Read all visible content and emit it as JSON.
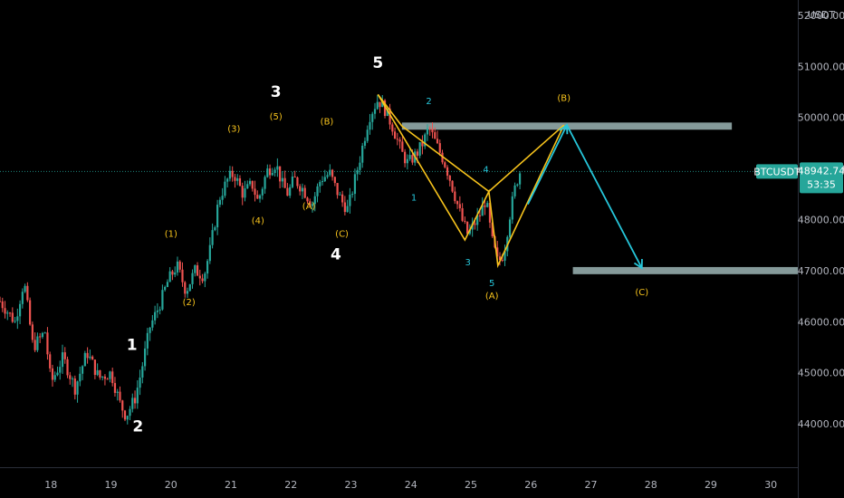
{
  "chart_data": {
    "type": "candlestick",
    "symbol": "BTCUSDT",
    "currency": "USDT",
    "last_price": "48942.74",
    "countdown": "53:35",
    "y_axis": {
      "ylim": [
        43150,
        52300
      ],
      "ticks": [
        "52000.00",
        "51000.00",
        "50000.00",
        "49000.00",
        "48000.00",
        "47000.00",
        "46000.00",
        "45000.00",
        "44000.00"
      ],
      "tick_values": [
        52000,
        51000,
        50000,
        49000,
        48000,
        47000,
        46000,
        45000,
        44000
      ]
    },
    "x_axis": {
      "xlim": [
        17.15,
        30.45
      ],
      "ticks": [
        "18",
        "19",
        "20",
        "21",
        "22",
        "23",
        "24",
        "25",
        "26",
        "27",
        "28",
        "29",
        "30"
      ],
      "tick_values": [
        18,
        19,
        20,
        21,
        22,
        23,
        24,
        25,
        26,
        27,
        28,
        29,
        30
      ]
    },
    "price_path": [
      [
        17.15,
        46400
      ],
      [
        17.4,
        46000
      ],
      [
        17.55,
        46800
      ],
      [
        17.7,
        45500
      ],
      [
        17.9,
        45800
      ],
      [
        18.0,
        44800
      ],
      [
        18.2,
        45300
      ],
      [
        18.4,
        44700
      ],
      [
        18.6,
        45400
      ],
      [
        18.8,
        44900
      ],
      [
        19.0,
        45000
      ],
      [
        19.15,
        44400
      ],
      [
        19.25,
        44150
      ],
      [
        19.4,
        44500
      ],
      [
        19.5,
        45000
      ],
      [
        19.65,
        45900
      ],
      [
        19.8,
        46300
      ],
      [
        19.95,
        46800
      ],
      [
        20.1,
        47100
      ],
      [
        20.25,
        46600
      ],
      [
        20.4,
        47000
      ],
      [
        20.55,
        46900
      ],
      [
        20.65,
        47400
      ],
      [
        20.8,
        48400
      ],
      [
        20.95,
        48800
      ],
      [
        21.05,
        48900
      ],
      [
        21.2,
        48500
      ],
      [
        21.35,
        48700
      ],
      [
        21.45,
        48350
      ],
      [
        21.6,
        48950
      ],
      [
        21.75,
        49100
      ],
      [
        21.85,
        48700
      ],
      [
        21.95,
        48500
      ],
      [
        22.05,
        48800
      ],
      [
        22.2,
        48600
      ],
      [
        22.35,
        48300
      ],
      [
        22.5,
        48800
      ],
      [
        22.65,
        48900
      ],
      [
        22.75,
        48600
      ],
      [
        22.85,
        48350
      ],
      [
        22.95,
        48200
      ],
      [
        23.05,
        48700
      ],
      [
        23.15,
        49200
      ],
      [
        23.3,
        50000
      ],
      [
        23.45,
        50350
      ],
      [
        23.55,
        50200
      ],
      [
        23.7,
        49800
      ],
      [
        23.85,
        49300
      ],
      [
        23.95,
        49100
      ],
      [
        24.1,
        49300
      ],
      [
        24.2,
        49500
      ],
      [
        24.3,
        49800
      ],
      [
        24.45,
        49400
      ],
      [
        24.55,
        49150
      ],
      [
        24.65,
        48800
      ],
      [
        24.75,
        48400
      ],
      [
        24.85,
        48000
      ],
      [
        24.95,
        47700
      ],
      [
        25.05,
        47900
      ],
      [
        25.15,
        48100
      ],
      [
        25.25,
        48400
      ],
      [
        25.35,
        47600
      ],
      [
        25.45,
        47150
      ],
      [
        25.55,
        47350
      ],
      [
        25.65,
        48100
      ],
      [
        25.75,
        48700
      ],
      [
        25.82,
        48942
      ]
    ],
    "zones": [
      {
        "x": [
          23.85,
          29.35
        ],
        "y": [
          49760,
          49900
        ]
      },
      {
        "x": [
          26.7,
          30.45
        ],
        "y": [
          46930,
          47070
        ]
      }
    ],
    "yellow_pattern": [
      [
        23.45,
        50450
      ],
      [
        24.9,
        47600
      ],
      [
        25.3,
        48550
      ],
      [
        25.45,
        47100
      ],
      [
        26.55,
        49850
      ],
      [
        23.85,
        49830
      ],
      [
        25.3,
        48550
      ],
      [
        26.55,
        49850
      ]
    ],
    "cyan_projection": [
      [
        25.95,
        48300
      ],
      [
        26.6,
        49850
      ],
      [
        27.85,
        47050
      ]
    ],
    "wave_labels": [
      {
        "text": "5",
        "x": 23.45,
        "y": 50970,
        "style": "w"
      },
      {
        "text": "3",
        "x": 21.75,
        "y": 50400,
        "style": "w"
      },
      {
        "text": "4",
        "x": 22.75,
        "y": 47220,
        "style": "w"
      },
      {
        "text": "1",
        "x": 19.35,
        "y": 45450,
        "style": "w"
      },
      {
        "text": "2",
        "x": 19.45,
        "y": 43850,
        "style": "w"
      },
      {
        "text": "(B)",
        "x": 26.55,
        "y": 50320,
        "style": "y"
      },
      {
        "text": "(3)",
        "x": 21.05,
        "y": 49720,
        "style": "y"
      },
      {
        "text": "(5)",
        "x": 21.75,
        "y": 49960,
        "style": "y"
      },
      {
        "text": "(B)",
        "x": 22.6,
        "y": 49860,
        "style": "y"
      },
      {
        "text": "(A)",
        "x": 22.3,
        "y": 48200,
        "style": "y"
      },
      {
        "text": "(4)",
        "x": 21.45,
        "y": 47920,
        "style": "y"
      },
      {
        "text": "(C)",
        "x": 22.85,
        "y": 47660,
        "style": "y"
      },
      {
        "text": "(1)",
        "x": 20.0,
        "y": 47660,
        "style": "y"
      },
      {
        "text": "(2)",
        "x": 20.3,
        "y": 46320,
        "style": "y"
      },
      {
        "text": "(A)",
        "x": 25.35,
        "y": 46450,
        "style": "y"
      },
      {
        "text": "(C)",
        "x": 27.85,
        "y": 46520,
        "style": "y"
      },
      {
        "text": "2",
        "x": 24.3,
        "y": 50260,
        "style": "c"
      },
      {
        "text": "4",
        "x": 25.25,
        "y": 48920,
        "style": "c"
      },
      {
        "text": "1",
        "x": 24.05,
        "y": 48370,
        "style": "c"
      },
      {
        "text": "3",
        "x": 24.95,
        "y": 47100,
        "style": "c"
      },
      {
        "text": "5",
        "x": 25.35,
        "y": 46700,
        "style": "c"
      }
    ]
  },
  "colors": {
    "background": "#000000",
    "up_candle": "#26a69a",
    "down_candle": "#ef5350",
    "zone": "#9cb5b5",
    "yellow": "#f7c31c",
    "cyan": "#26c6da",
    "price_tag": "#26a69a",
    "axis_text": "#b2b5be"
  }
}
